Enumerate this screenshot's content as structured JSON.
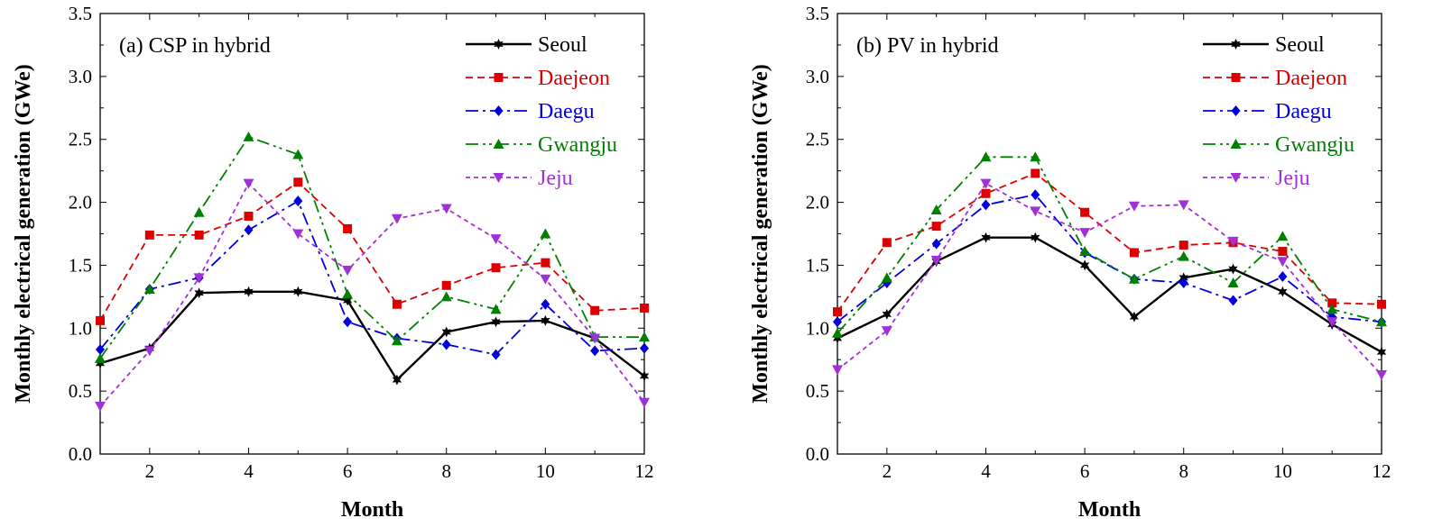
{
  "chart_data": [
    {
      "type": "line",
      "title": "(a) CSP in hybrid",
      "xlabel": "Month",
      "ylabel": "Monthly electrical generation (GWe)",
      "xlim": [
        1,
        12
      ],
      "ylim": [
        0,
        3.5
      ],
      "xticks": [
        "2",
        "4",
        "6",
        "8",
        "10",
        "12"
      ],
      "yticks": [
        "0.0",
        "0.5",
        "1.0",
        "1.5",
        "2.0",
        "2.5",
        "3.0",
        "3.5"
      ],
      "legend_position": "top-right",
      "grid": false,
      "x": [
        1,
        2,
        3,
        4,
        5,
        6,
        7,
        8,
        9,
        10,
        11,
        12
      ],
      "series": [
        {
          "name": "Seoul",
          "color": "#000000",
          "marker": "star",
          "values": [
            0.72,
            0.84,
            1.28,
            1.29,
            1.29,
            1.22,
            0.59,
            0.97,
            1.05,
            1.06,
            0.92,
            0.62
          ]
        },
        {
          "name": "Daejeon",
          "color": "#dd0000",
          "marker": "square",
          "values": [
            1.06,
            1.74,
            1.74,
            1.89,
            2.16,
            1.79,
            1.19,
            1.34,
            1.48,
            1.52,
            1.14,
            1.16
          ]
        },
        {
          "name": "Daegu",
          "color": "#0000dd",
          "marker": "diamond",
          "values": [
            0.83,
            1.31,
            1.4,
            1.78,
            2.01,
            1.05,
            0.92,
            0.87,
            0.79,
            1.19,
            0.82,
            0.84
          ]
        },
        {
          "name": "Gwangju",
          "color": "#008000",
          "marker": "triangle-up",
          "values": [
            0.76,
            1.31,
            1.92,
            2.52,
            2.38,
            1.27,
            0.9,
            1.25,
            1.15,
            1.75,
            0.93,
            0.93
          ]
        },
        {
          "name": "Jeju",
          "color": "#a030d8",
          "marker": "triangle-down",
          "values": [
            0.38,
            0.82,
            1.4,
            2.15,
            1.75,
            1.46,
            1.87,
            1.95,
            1.71,
            1.39,
            0.92,
            0.41
          ]
        }
      ]
    },
    {
      "type": "line",
      "title": "(b) PV in hybrid",
      "xlabel": "Month",
      "ylabel": "Monthly electrical generation (GWe)",
      "xlim": [
        1,
        12
      ],
      "ylim": [
        0,
        3.5
      ],
      "xticks": [
        "2",
        "4",
        "6",
        "8",
        "10",
        "12"
      ],
      "yticks": [
        "0.0",
        "0.5",
        "1.0",
        "1.5",
        "2.0",
        "2.5",
        "3.0",
        "3.5"
      ],
      "legend_position": "top-right",
      "grid": false,
      "x": [
        1,
        2,
        3,
        4,
        5,
        6,
        7,
        8,
        9,
        10,
        11,
        12
      ],
      "series": [
        {
          "name": "Seoul",
          "color": "#000000",
          "marker": "star",
          "values": [
            0.92,
            1.11,
            1.53,
            1.72,
            1.72,
            1.5,
            1.09,
            1.4,
            1.47,
            1.29,
            1.03,
            0.81
          ]
        },
        {
          "name": "Daejeon",
          "color": "#dd0000",
          "marker": "square",
          "values": [
            1.13,
            1.68,
            1.81,
            2.07,
            2.23,
            1.92,
            1.6,
            1.66,
            1.68,
            1.61,
            1.2,
            1.19
          ]
        },
        {
          "name": "Daegu",
          "color": "#0000dd",
          "marker": "diamond",
          "values": [
            1.05,
            1.36,
            1.67,
            1.98,
            2.06,
            1.6,
            1.39,
            1.36,
            1.22,
            1.41,
            1.09,
            1.05
          ]
        },
        {
          "name": "Gwangju",
          "color": "#008000",
          "marker": "triangle-up",
          "values": [
            0.96,
            1.4,
            1.94,
            2.36,
            2.36,
            1.61,
            1.39,
            1.57,
            1.36,
            1.73,
            1.15,
            1.05
          ]
        },
        {
          "name": "Jeju",
          "color": "#a030d8",
          "marker": "triangle-down",
          "values": [
            0.67,
            0.98,
            1.54,
            2.15,
            1.93,
            1.76,
            1.97,
            1.98,
            1.69,
            1.53,
            1.05,
            0.63
          ]
        }
      ]
    }
  ]
}
